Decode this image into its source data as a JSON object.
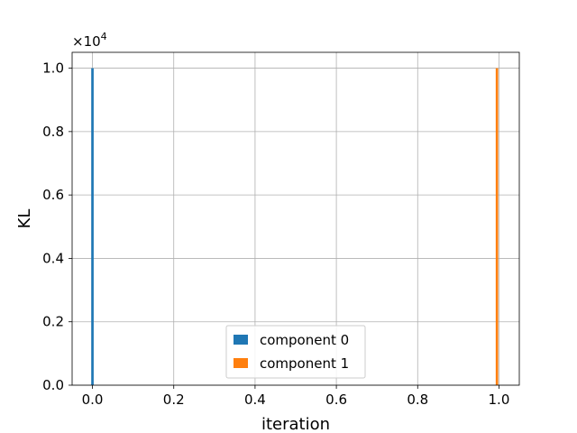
{
  "chart_data": {
    "type": "bar",
    "xlabel": "iteration",
    "ylabel": "KL",
    "y_multiplier_base": "×10",
    "y_multiplier_exponent": "4",
    "xlim": [
      -0.05,
      1.05
    ],
    "ylim": [
      0,
      10500
    ],
    "xticks": [
      0.0,
      0.2,
      0.4,
      0.6,
      0.8,
      1.0
    ],
    "xtick_labels": [
      "0.0",
      "0.2",
      "0.4",
      "0.6",
      "0.8",
      "1.0"
    ],
    "yticks": [
      0,
      2000,
      4000,
      6000,
      8000,
      10000
    ],
    "ytick_labels": [
      "0.0",
      "0.2",
      "0.4",
      "0.6",
      "0.8",
      "1.0"
    ],
    "grid": true,
    "legend_position": "lower-center",
    "bar_width": 0.006,
    "series": [
      {
        "name": "component 0",
        "color": "#1f77b4",
        "x": [
          0.0
        ],
        "values": [
          10000
        ]
      },
      {
        "name": "component 1",
        "color": "#ff7f0e",
        "x": [
          0.995
        ],
        "values": [
          10000
        ]
      }
    ]
  }
}
